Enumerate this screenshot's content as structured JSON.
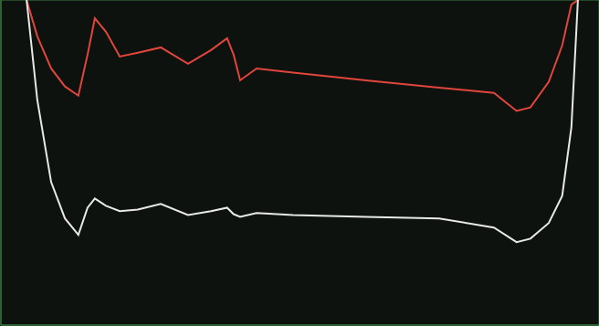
{
  "chart_data": {
    "type": "line",
    "grid": true,
    "tick_labels": false,
    "x": [
      0.67,
      0.95,
      1.31,
      1.67,
      2.02,
      2.26,
      2.45,
      2.74,
      3.1,
      3.57,
      4.17,
      4.88,
      5.48,
      5.9,
      6.07,
      6.24,
      6.67,
      7.62,
      9.52,
      11.43,
      12.86,
      13.45,
      13.81,
      14.29,
      14.64,
      14.88,
      15.05
    ],
    "xlim": [
      0,
      15.6
    ],
    "xticks": [
      1,
      2,
      3,
      4,
      5,
      6,
      7,
      8,
      9,
      10,
      11,
      12,
      13,
      14,
      15
    ],
    "ylim": [
      0,
      8.5
    ],
    "yticks": [
      0.33,
      1.33,
      2.33,
      3.33,
      4.33,
      5.33,
      6.33,
      7.33,
      8.33
    ],
    "series": [
      {
        "color": "#e0463c",
        "values": [
          8.5,
          7.55,
          6.71,
          6.24,
          6.0,
          7.07,
          8.02,
          7.67,
          7.02,
          7.12,
          7.26,
          6.83,
          7.19,
          7.5,
          7.07,
          6.4,
          6.71,
          6.6,
          6.4,
          6.21,
          6.07,
          5.6,
          5.69,
          6.36,
          7.31,
          8.38,
          8.5
        ]
      },
      {
        "color": "#e8e8e8",
        "values": [
          8.5,
          5.88,
          3.74,
          2.79,
          2.36,
          3.07,
          3.31,
          3.12,
          2.98,
          3.02,
          3.17,
          2.88,
          2.98,
          3.07,
          2.9,
          2.83,
          2.93,
          2.88,
          2.83,
          2.79,
          2.55,
          2.17,
          2.26,
          2.67,
          3.38,
          5.17,
          8.5
        ]
      }
    ]
  }
}
